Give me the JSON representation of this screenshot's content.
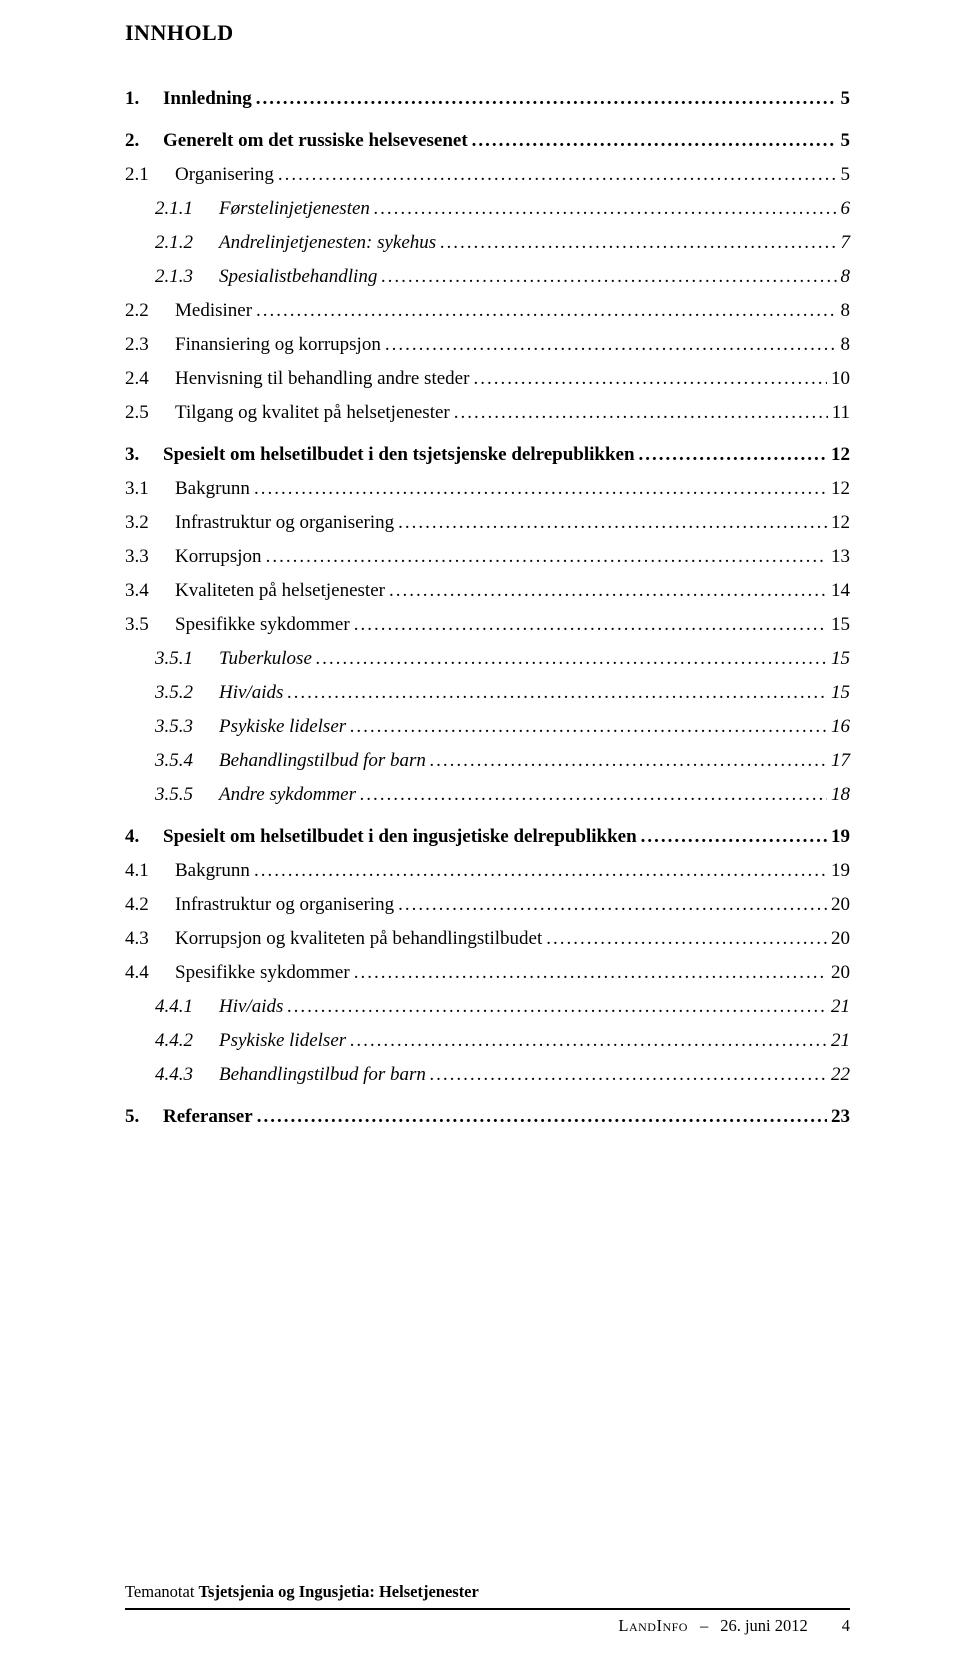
{
  "title": "INNHOLD",
  "entries": [
    {
      "level": 1,
      "num": "1.",
      "text": "Innledning",
      "page": "5",
      "gap": false
    },
    {
      "level": 1,
      "num": "2.",
      "text": "Generelt om det russiske helsevesenet",
      "page": "5",
      "gap": true
    },
    {
      "level": 2,
      "num": "2.1",
      "text": "Organisering",
      "page": "5",
      "gap": false
    },
    {
      "level": 3,
      "num": "2.1.1",
      "text": "Førstelinjetjenesten",
      "page": "6",
      "gap": false
    },
    {
      "level": 3,
      "num": "2.1.2",
      "text": "Andrelinjetjenesten: sykehus",
      "page": "7",
      "gap": false
    },
    {
      "level": 3,
      "num": "2.1.3",
      "text": "Spesialistbehandling",
      "page": "8",
      "gap": false
    },
    {
      "level": 2,
      "num": "2.2",
      "text": "Medisiner",
      "page": "8",
      "gap": false
    },
    {
      "level": 2,
      "num": "2.3",
      "text": "Finansiering og korrupsjon",
      "page": "8",
      "gap": false
    },
    {
      "level": 2,
      "num": "2.4",
      "text": "Henvisning til behandling andre steder",
      "page": "10",
      "gap": false
    },
    {
      "level": 2,
      "num": "2.5",
      "text": "Tilgang og kvalitet på helsetjenester",
      "page": "11",
      "gap": false
    },
    {
      "level": 1,
      "num": "3.",
      "text": "Spesielt om helsetilbudet i den tsjetsjenske delrepublikken",
      "page": "12",
      "gap": true
    },
    {
      "level": 2,
      "num": "3.1",
      "text": "Bakgrunn",
      "page": "12",
      "gap": false
    },
    {
      "level": 2,
      "num": "3.2",
      "text": "Infrastruktur og organisering",
      "page": "12",
      "gap": false
    },
    {
      "level": 2,
      "num": "3.3",
      "text": "Korrupsjon",
      "page": "13",
      "gap": false
    },
    {
      "level": 2,
      "num": "3.4",
      "text": "Kvaliteten på helsetjenester",
      "page": "14",
      "gap": false
    },
    {
      "level": 2,
      "num": "3.5",
      "text": "Spesifikke sykdommer",
      "page": "15",
      "gap": false
    },
    {
      "level": 3,
      "num": "3.5.1",
      "text": "Tuberkulose",
      "page": "15",
      "gap": false
    },
    {
      "level": 3,
      "num": "3.5.2",
      "text": "Hiv/aids",
      "page": "15",
      "gap": false
    },
    {
      "level": 3,
      "num": "3.5.3",
      "text": "Psykiske lidelser",
      "page": "16",
      "gap": false
    },
    {
      "level": 3,
      "num": "3.5.4",
      "text": "Behandlingstilbud for barn",
      "page": "17",
      "gap": false
    },
    {
      "level": 3,
      "num": "3.5.5",
      "text": "Andre sykdommer",
      "page": "18",
      "gap": false
    },
    {
      "level": 1,
      "num": "4.",
      "text": "Spesielt om helsetilbudet i den ingusjetiske delrepublikken",
      "page": "19",
      "gap": true
    },
    {
      "level": 2,
      "num": "4.1",
      "text": "Bakgrunn",
      "page": "19",
      "gap": false
    },
    {
      "level": 2,
      "num": "4.2",
      "text": "Infrastruktur og organisering",
      "page": "20",
      "gap": false
    },
    {
      "level": 2,
      "num": "4.3",
      "text": "Korrupsjon og kvaliteten på behandlingstilbudet",
      "page": "20",
      "gap": false
    },
    {
      "level": 2,
      "num": "4.4",
      "text": "Spesifikke sykdommer",
      "page": "20",
      "gap": false
    },
    {
      "level": 3,
      "num": "4.4.1",
      "text": "Hiv/aids",
      "page": "21",
      "gap": false
    },
    {
      "level": 3,
      "num": "4.4.2",
      "text": "Psykiske lidelser",
      "page": "21",
      "gap": false
    },
    {
      "level": 3,
      "num": "4.4.3",
      "text": "Behandlingstilbud for barn",
      "page": "22",
      "gap": false
    },
    {
      "level": 1,
      "num": "5.",
      "text": "Referanser",
      "page": "23",
      "gap": true
    }
  ],
  "footer": {
    "left_prefix": "Temanotat ",
    "left_bold": "Tsjetsjenia og Ingusjetia: Helsetjenester",
    "right_source": "LandInfo",
    "right_sep": "–",
    "right_date": "26. juni 2012",
    "page_no": "4"
  },
  "colors": {
    "text": "#000000",
    "background": "#ffffff",
    "rule": "#000000"
  },
  "fonts": {
    "family": "Times New Roman",
    "title_size_pt": 16,
    "body_size_pt": 14,
    "footer_size_pt": 12
  }
}
